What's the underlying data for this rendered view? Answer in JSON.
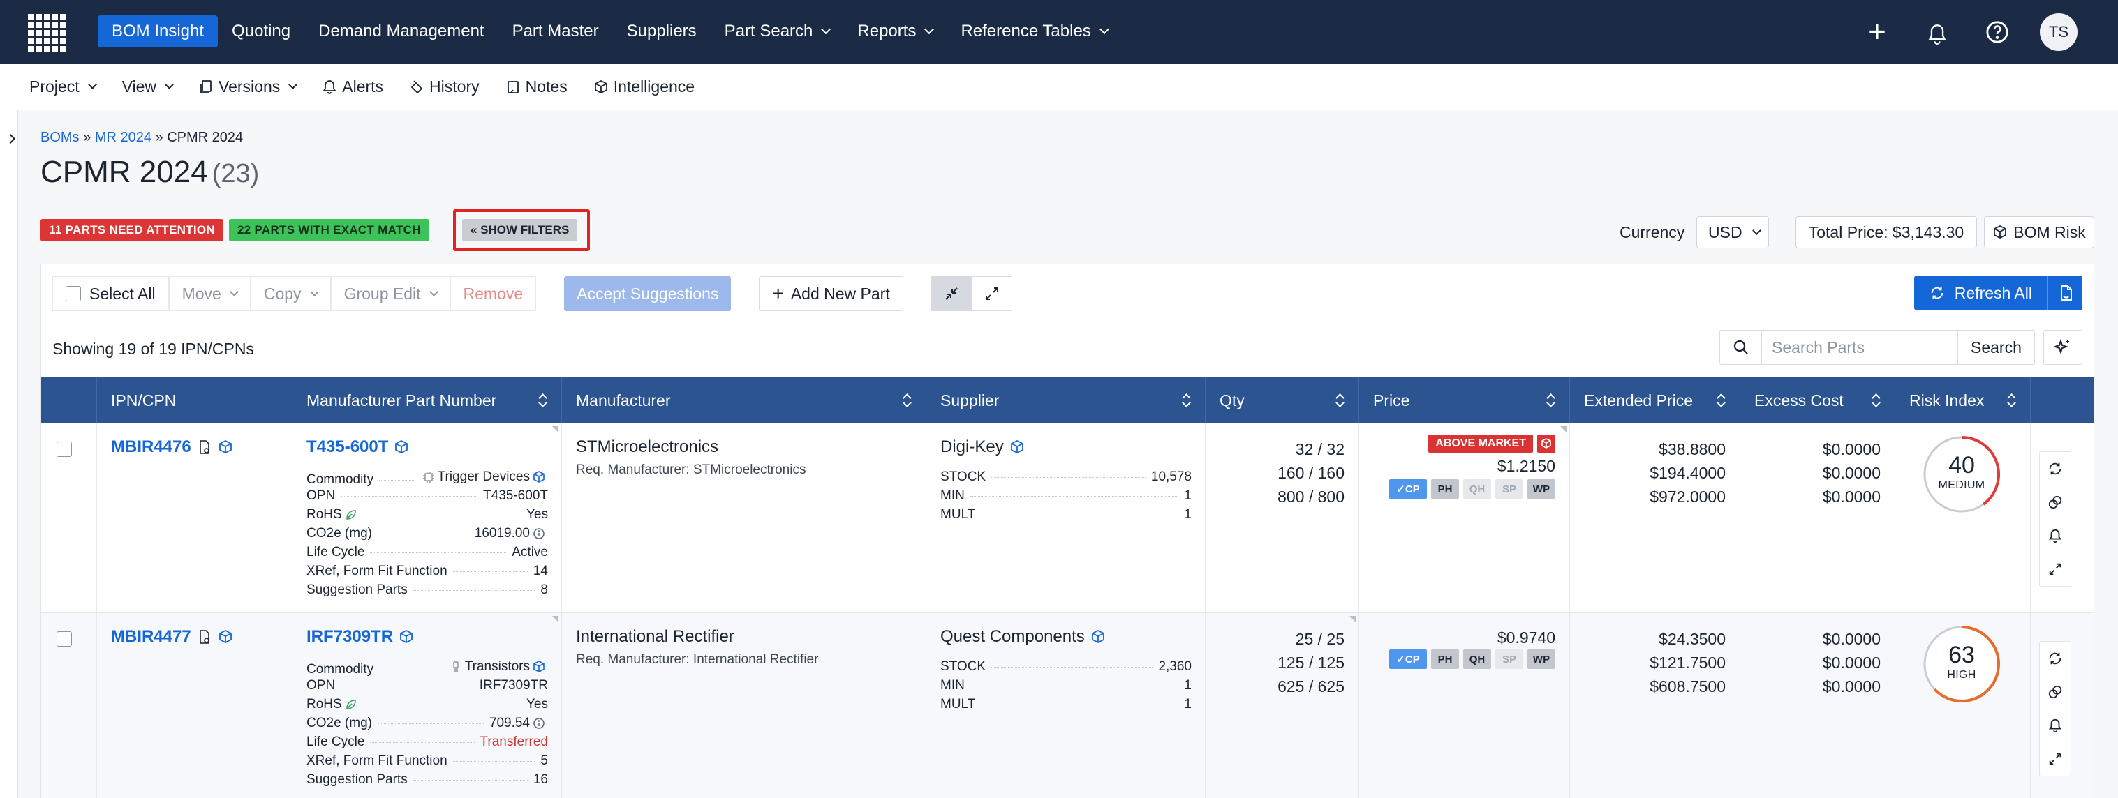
{
  "nav": {
    "items": [
      {
        "label": "BOM Insight",
        "active": true,
        "dropdown": false
      },
      {
        "label": "Quoting",
        "active": false,
        "dropdown": false
      },
      {
        "label": "Demand Management",
        "active": false,
        "dropdown": false
      },
      {
        "label": "Part Master",
        "active": false,
        "dropdown": false
      },
      {
        "label": "Suppliers",
        "active": false,
        "dropdown": false
      },
      {
        "label": "Part Search",
        "active": false,
        "dropdown": true
      },
      {
        "label": "Reports",
        "active": false,
        "dropdown": true
      },
      {
        "label": "Reference Tables",
        "active": false,
        "dropdown": true
      }
    ],
    "avatar_initials": "TS"
  },
  "subbar": {
    "project": "Project",
    "view": "View",
    "versions": "Versions",
    "alerts": "Alerts",
    "history": "History",
    "notes": "Notes",
    "intelligence": "Intelligence"
  },
  "breadcrumb": {
    "root": "BOMs",
    "sep1": "»",
    "parent": "MR 2024",
    "sep2": "»",
    "current": "CPMR 2024"
  },
  "page": {
    "title": "CPMR 2024",
    "count": "(23)"
  },
  "badges": {
    "attention": "11 PARTS NEED ATTENTION",
    "exact_match": "22 PARTS WITH EXACT MATCH",
    "show_filters": "« SHOW FILTERS"
  },
  "summary": {
    "currency_label": "Currency",
    "currency_value": "USD",
    "total_price": "Total Price: $3,143.30",
    "bom_risk": "BOM Risk"
  },
  "toolbar": {
    "select_all": "Select All",
    "move": "Move",
    "copy": "Copy",
    "group_edit": "Group Edit",
    "remove": "Remove",
    "accept_suggestions": "Accept Suggestions",
    "add_new_part": "Add New Part",
    "refresh_all": "Refresh All"
  },
  "list": {
    "showing": "Showing 19 of 19 IPN/CPNs",
    "search_placeholder": "Search Parts",
    "search_button": "Search"
  },
  "columns": [
    "IPN/CPN",
    "Manufacturer Part Number",
    "Manufacturer",
    "Supplier",
    "Qty",
    "Price",
    "Extended Price",
    "Excess Cost",
    "Risk Index"
  ],
  "rows": [
    {
      "ipn": "MBIR4476",
      "mpn": "T435-600T",
      "commodity_label": "Commodity",
      "commodity": "Trigger Devices",
      "opn_label": "OPN",
      "opn": "T435-600T",
      "rohs_label": "RoHS",
      "rohs": "Yes",
      "co2_label": "CO2e (mg)",
      "co2": "16019.00",
      "lifecycle_label": "Life Cycle",
      "lifecycle": "Active",
      "lifecycle_color": "#1b2430",
      "xref_label": "XRef, Form Fit Function",
      "xref": "14",
      "suggestion_label": "Suggestion Parts",
      "suggestion": "8",
      "manufacturer": "STMicroelectronics",
      "req_manufacturer": "Req. Manufacturer: STMicroelectronics",
      "supplier": "Digi-Key",
      "stock_label": "STOCK",
      "stock": "10,578",
      "min_label": "MIN",
      "min": "1",
      "mult_label": "MULT",
      "mult": "1",
      "qty": [
        "32 / 32",
        "160 / 160",
        "800 / 800"
      ],
      "above_market": "ABOVE MARKET",
      "price": "$1.2150",
      "tags": {
        "cp": "✓CP",
        "ph": "PH",
        "qh": "QH",
        "sp": "SP",
        "wp": "WP"
      },
      "extended": [
        "$38.8800",
        "$194.4000",
        "$972.0000"
      ],
      "excess": [
        "$0.0000",
        "$0.0000",
        "$0.0000"
      ],
      "risk_value": "40",
      "risk_label": "MEDIUM",
      "risk_color": "#e03b3b"
    },
    {
      "ipn": "MBIR4477",
      "mpn": "IRF7309TR",
      "commodity_label": "Commodity",
      "commodity": "Transistors",
      "opn_label": "OPN",
      "opn": "IRF7309TR",
      "rohs_label": "RoHS",
      "rohs": "Yes",
      "co2_label": "CO2e (mg)",
      "co2": "709.54",
      "lifecycle_label": "Life Cycle",
      "lifecycle": "Transferred",
      "lifecycle_color": "#d03434",
      "xref_label": "XRef, Form Fit Function",
      "xref": "5",
      "suggestion_label": "Suggestion Parts",
      "suggestion": "16",
      "manufacturer": "International Rectifier",
      "req_manufacturer": "Req. Manufacturer: International Rectifier",
      "supplier": "Quest Components",
      "stock_label": "STOCK",
      "stock": "2,360",
      "min_label": "MIN",
      "min": "1",
      "mult_label": "MULT",
      "mult": "1",
      "qty": [
        "25 / 25",
        "125 / 125",
        "625 / 625"
      ],
      "price": "$0.9740",
      "tags": {
        "cp": "✓CP",
        "ph": "PH",
        "qh": "QH",
        "sp": "SP",
        "wp": "WP"
      },
      "extended": [
        "$24.3500",
        "$121.7500",
        "$608.7500"
      ],
      "excess": [
        "$0.0000",
        "$0.0000",
        "$0.0000"
      ],
      "risk_value": "63",
      "risk_label": "HIGH",
      "risk_color": "#e86a2c"
    }
  ],
  "colors": {
    "nav_bg": "#1c2b45",
    "accent": "#1566d6",
    "table_header": "#2b5490",
    "attention": "#dc3535",
    "exact_match": "#3ec25a"
  }
}
